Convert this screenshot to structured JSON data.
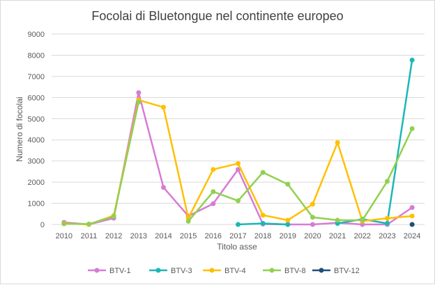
{
  "chart_data": {
    "type": "line",
    "title": "Focolai di Bluetongue nel continente europeo",
    "xlabel": "Titolo asse",
    "ylabel": "Numero di focolai",
    "ylim": [
      0,
      9000
    ],
    "yticks": [
      0,
      1000,
      2000,
      3000,
      4000,
      5000,
      6000,
      7000,
      8000,
      9000
    ],
    "grid": true,
    "legend_position": "bottom",
    "categories": [
      "2010",
      "2011",
      "2012",
      "2013",
      "2014",
      "2015",
      "2016",
      "2017",
      "2018",
      "2019",
      "2020",
      "2021",
      "2022",
      "2023",
      "2024"
    ],
    "series": [
      {
        "name": "BTV-1",
        "color": "#d77bd6",
        "values": [
          100,
          0,
          300,
          6230,
          1750,
          400,
          980,
          2600,
          20,
          0,
          0,
          80,
          0,
          0,
          800
        ]
      },
      {
        "name": "BTV-3",
        "color": "#1ab7b7",
        "values": [
          null,
          null,
          null,
          null,
          null,
          null,
          null,
          0,
          50,
          0,
          null,
          50,
          250,
          50,
          7770
        ]
      },
      {
        "name": "BTV-4",
        "color": "#ffc000",
        "values": [
          50,
          0,
          420,
          5880,
          5540,
          300,
          2600,
          2880,
          440,
          200,
          960,
          3870,
          160,
          290,
          400
        ]
      },
      {
        "name": "BTV-8",
        "color": "#92d050",
        "values": [
          30,
          20,
          380,
          5780,
          null,
          150,
          1550,
          1120,
          2460,
          1900,
          340,
          200,
          200,
          2040,
          4530
        ]
      },
      {
        "name": "BTV-12",
        "color": "#1f4e79",
        "values": [
          null,
          null,
          null,
          null,
          null,
          null,
          null,
          null,
          null,
          null,
          null,
          null,
          null,
          null,
          0
        ]
      }
    ]
  }
}
